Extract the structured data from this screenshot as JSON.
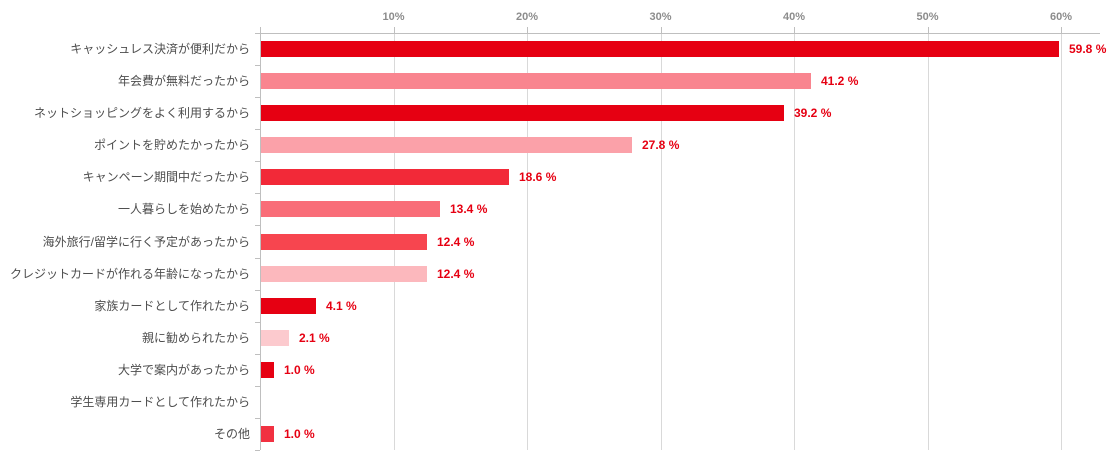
{
  "chart_data": {
    "type": "bar",
    "orientation": "horizontal",
    "title": "",
    "categories": [
      "キャッシュレス決済が便利だから",
      "年会費が無料だったから",
      "ネットショッピングをよく利用するから",
      "ポイントを貯めたかったから",
      "キャンペーン期間中だったから",
      "一人暮らしを始めたから",
      "海外旅行/留学に行く予定があったから",
      "クレジットカードが作れる年齢になったから",
      "家族カードとして作れたから",
      "親に勧められたから",
      "大学で案内があったから",
      "学生専用カードとして作れたから",
      "その他"
    ],
    "values": [
      59.8,
      41.2,
      39.2,
      27.8,
      18.6,
      13.4,
      12.4,
      12.4,
      4.1,
      2.1,
      1.0,
      0,
      1.0
    ],
    "value_labels": [
      "59.8 %",
      "41.2 %",
      "39.2 %",
      "27.8 %",
      "18.6 %",
      "13.4 %",
      "12.4 %",
      "12.4 %",
      "4.1 %",
      "2.1 %",
      "1.0 %",
      "",
      "1.0 %"
    ],
    "bar_colors": [
      "#e60012",
      "#f9858f",
      "#e60012",
      "#fba1a9",
      "#f22938",
      "#f96d78",
      "#f7454f",
      "#fcb8bd",
      "#e60012",
      "#fccace",
      "#e60012",
      "",
      "#f13141"
    ],
    "x_axis": {
      "tick_labels": [
        "10%",
        "20%",
        "30%",
        "40%",
        "50%",
        "60%"
      ],
      "tick_values": [
        10,
        20,
        30,
        40,
        50,
        60
      ],
      "range": [
        0,
        63
      ]
    },
    "grid": true,
    "legend": "none",
    "colors": {
      "value_label": "#e60012",
      "category_label": "#4d4d4d",
      "tick_label": "#8c8c8c",
      "axis": "#bfbfbf",
      "gridline": "#d9d9d9",
      "background": "#ffffff"
    }
  }
}
